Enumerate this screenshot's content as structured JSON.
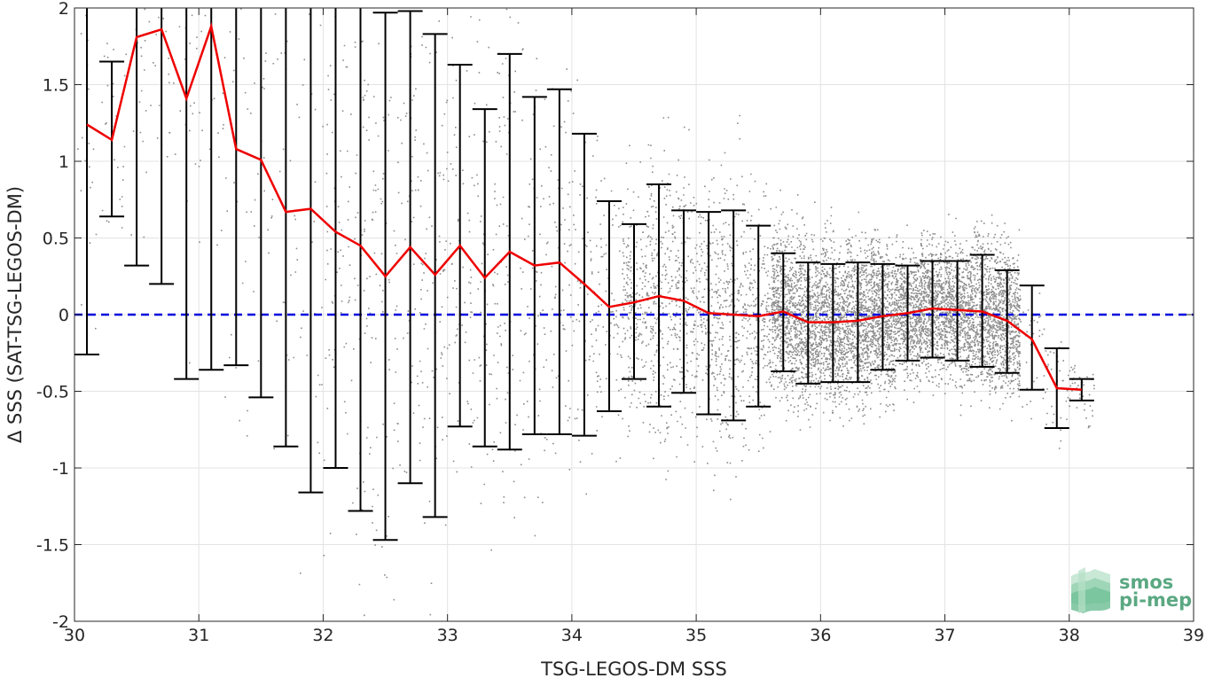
{
  "chart_data": {
    "type": "scatter",
    "title": "",
    "xlabel": "TSG-LEGOS-DM SSS",
    "ylabel": "Δ SSS (SAT-TSG-LEGOS-DM)",
    "xlim": [
      30,
      39
    ],
    "ylim": [
      -2,
      2
    ],
    "x_ticks": [
      "30",
      "31",
      "32",
      "33",
      "34",
      "35",
      "36",
      "37",
      "38",
      "39"
    ],
    "y_ticks": [
      "-2",
      "-1.5",
      "-1",
      "-0.5",
      "0",
      "0.5",
      "1",
      "1.5",
      "2"
    ],
    "grid": true,
    "zero_line": {
      "y": 0,
      "style": "dashed",
      "color": "#0000dd"
    },
    "series": [
      {
        "kind": "scatter",
        "color": "#8c8c8c",
        "description_of_density": [
          {
            "x_range": [
              30,
              32
            ],
            "density": "sparse"
          },
          {
            "x_range": [
              32,
              34.5
            ],
            "density": "moderate"
          },
          {
            "x_range": [
              34.5,
              35.7
            ],
            "density": "dense"
          },
          {
            "x_range": [
              35.7,
              37.6
            ],
            "density": "very dense"
          },
          {
            "x_range": [
              37.6,
              38.2
            ],
            "density": "sparse"
          }
        ]
      },
      {
        "kind": "line",
        "color": "#ee0000",
        "x": [
          30.1,
          30.3,
          30.5,
          30.7,
          30.9,
          31.1,
          31.3,
          31.5,
          31.7,
          31.9,
          32.1,
          32.3,
          32.5,
          32.7,
          32.9,
          33.1,
          33.3,
          33.5,
          33.7,
          33.9,
          34.1,
          34.3,
          34.5,
          34.7,
          34.9,
          35.1,
          35.3,
          35.5,
          35.7,
          35.9,
          36.1,
          36.3,
          36.5,
          36.7,
          36.9,
          37.1,
          37.3,
          37.5,
          37.7,
          37.9,
          38.1
        ],
        "y": [
          1.24,
          1.14,
          1.81,
          1.86,
          1.41,
          1.88,
          1.08,
          1.01,
          0.67,
          0.69,
          0.54,
          0.45,
          0.25,
          0.44,
          0.26,
          0.45,
          0.24,
          0.41,
          0.32,
          0.34,
          0.2,
          0.05,
          0.08,
          0.12,
          0.09,
          0.01,
          0.0,
          -0.01,
          0.02,
          -0.05,
          -0.05,
          -0.04,
          -0.01,
          0.01,
          0.04,
          0.03,
          0.02,
          -0.04,
          -0.16,
          -0.48,
          -0.49
        ]
      },
      {
        "kind": "errorbar",
        "color": "#000000",
        "x": [
          30.1,
          30.3,
          30.5,
          30.7,
          30.9,
          31.1,
          31.3,
          31.5,
          31.7,
          31.9,
          32.1,
          32.3,
          32.5,
          32.7,
          32.9,
          33.1,
          33.3,
          33.5,
          33.7,
          33.9,
          34.1,
          34.3,
          34.5,
          34.7,
          34.9,
          35.1,
          35.3,
          35.5,
          35.7,
          35.9,
          36.1,
          36.3,
          36.5,
          36.7,
          36.9,
          37.1,
          37.3,
          37.5,
          37.7,
          37.9,
          38.1
        ],
        "lower": [
          -0.26,
          0.64,
          0.32,
          0.2,
          -0.42,
          -0.36,
          -0.33,
          -0.54,
          -0.86,
          -1.16,
          -1.0,
          -1.28,
          -1.47,
          -1.1,
          -1.32,
          -0.73,
          -0.86,
          -0.88,
          -0.78,
          -0.78,
          -0.79,
          -0.63,
          -0.42,
          -0.6,
          -0.51,
          -0.65,
          -0.69,
          -0.6,
          -0.37,
          -0.45,
          -0.44,
          -0.44,
          -0.36,
          -0.3,
          -0.28,
          -0.3,
          -0.34,
          -0.38,
          -0.49,
          -0.74,
          -0.56
        ],
        "upper": [
          2.0,
          1.65,
          2.0,
          2.0,
          2.0,
          2.0,
          2.0,
          2.0,
          2.0,
          2.0,
          2.0,
          2.0,
          1.97,
          1.98,
          1.83,
          1.63,
          1.34,
          1.7,
          1.42,
          1.47,
          1.18,
          0.74,
          0.59,
          0.85,
          0.68,
          0.67,
          0.68,
          0.58,
          0.4,
          0.34,
          0.33,
          0.34,
          0.33,
          0.32,
          0.35,
          0.35,
          0.39,
          0.29,
          0.19,
          -0.22,
          -0.42
        ]
      }
    ]
  },
  "logo": {
    "line1": "smos",
    "line2": "pi-mep",
    "color": "#5aa882"
  }
}
